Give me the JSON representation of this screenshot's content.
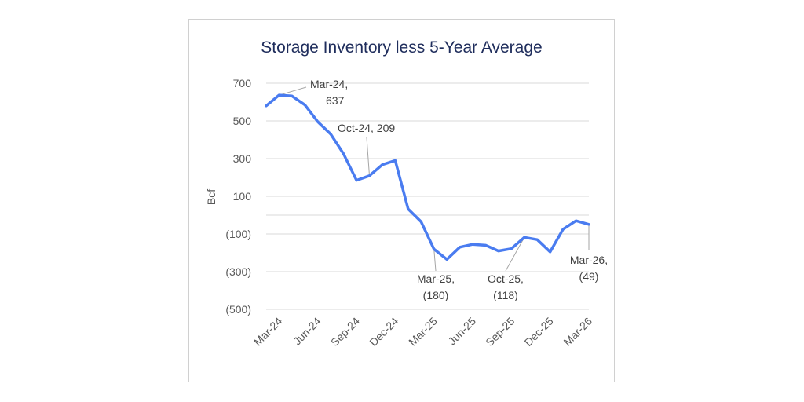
{
  "chart_data": {
    "type": "line",
    "title": "Storage Inventory less 5-Year Average",
    "xlabel": "",
    "ylabel": "Bcf",
    "x": [
      "Feb-24",
      "Mar-24",
      "Apr-24",
      "May-24",
      "Jun-24",
      "Jul-24",
      "Aug-24",
      "Sep-24",
      "Oct-24",
      "Nov-24",
      "Dec-24",
      "Jan-25",
      "Feb-25",
      "Mar-25",
      "Apr-25",
      "May-25",
      "Jun-25",
      "Jul-25",
      "Aug-25",
      "Sep-25",
      "Oct-25",
      "Nov-25",
      "Dec-25",
      "Jan-26",
      "Feb-26",
      "Mar-26"
    ],
    "x_tick_labels": [
      "Mar-24",
      "Jun-24",
      "Sep-24",
      "Dec-24",
      "Mar-25",
      "Jun-25",
      "Sep-25",
      "Dec-25",
      "Mar-26"
    ],
    "series": [
      {
        "color": "#4a7cf0",
        "values": [
          580,
          637,
          632,
          585,
          495,
          430,
          325,
          185,
          209,
          268,
          290,
          33,
          -35,
          -180,
          -235,
          -170,
          -155,
          -160,
          -190,
          -178,
          -118,
          -130,
          -195,
          -75,
          -30,
          -49
        ]
      }
    ],
    "y_tick_labels": [
      "700",
      "500",
      "300",
      "100",
      "(100)",
      "(300)",
      "(500)"
    ],
    "ylim": [
      -500,
      700
    ],
    "grid": true,
    "legend": "none",
    "annotations": [
      {
        "line1": "Mar-24,",
        "line2": "637"
      },
      {
        "line1": "Oct-24,  209",
        "line2": ""
      },
      {
        "line1": "Mar-25,",
        "line2": "(180)"
      },
      {
        "line1": "Oct-25,",
        "line2": "(118)"
      },
      {
        "line1": "Mar-26,",
        "line2": "(49)"
      }
    ]
  }
}
